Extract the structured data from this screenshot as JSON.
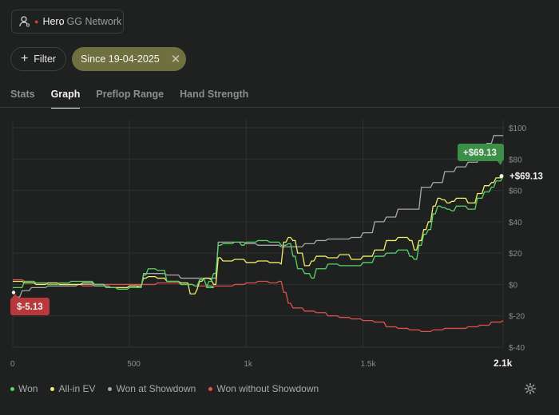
{
  "player": {
    "name": "Hero",
    "network": "GG Network",
    "user_icon": "user-settings-icon"
  },
  "filter": {
    "label": "Filter",
    "active_chip": "Since 19-04-2025"
  },
  "tabs": [
    {
      "label": "Stats",
      "active": false
    },
    {
      "label": "Graph",
      "active": true
    },
    {
      "label": "Preflop Range",
      "active": false
    },
    {
      "label": "Hand Strength",
      "active": false
    }
  ],
  "chart_data": {
    "type": "line",
    "x_ticks": [
      "0",
      "500",
      "1k",
      "1.5k",
      "2.1k"
    ],
    "x_tick_values": [
      0,
      500,
      1000,
      1500,
      2100
    ],
    "y_ticks": [
      "$100",
      "$80",
      "$60",
      "$40",
      "$20",
      "$0",
      "$-20",
      "$-40"
    ],
    "y_tick_values": [
      100,
      80,
      60,
      40,
      20,
      0,
      -20,
      -40
    ],
    "xlim": [
      0,
      2100
    ],
    "ylim": [
      -40,
      100
    ],
    "end_label": "+$69.13",
    "end_badge": "+$69.13",
    "start_badge": "$-5.13",
    "colors": {
      "won": "#57d46a",
      "ev": "#f0ee6a",
      "showdown": "#a8a8a8",
      "nonsd": "#e0514b",
      "badge_green": "#3c8f46",
      "badge_red": "#b9383b"
    },
    "series": [
      {
        "name": "Won",
        "points": [
          [
            0,
            -2
          ],
          [
            50,
            2
          ],
          [
            100,
            1
          ],
          [
            150,
            0
          ],
          [
            200,
            1
          ],
          [
            250,
            2
          ],
          [
            300,
            2
          ],
          [
            350,
            0
          ],
          [
            400,
            -2
          ],
          [
            450,
            -3
          ],
          [
            500,
            -2
          ],
          [
            540,
            -2
          ],
          [
            560,
            6
          ],
          [
            580,
            10
          ],
          [
            620,
            9
          ],
          [
            660,
            2
          ],
          [
            720,
            0
          ],
          [
            780,
            -1
          ],
          [
            800,
            3
          ],
          [
            820,
            3
          ],
          [
            830,
            -1
          ],
          [
            860,
            -2
          ],
          [
            840,
            2
          ],
          [
            860,
            7
          ],
          [
            880,
            25
          ],
          [
            900,
            26
          ],
          [
            950,
            27
          ],
          [
            980,
            25
          ],
          [
            1000,
            27
          ],
          [
            1050,
            28
          ],
          [
            1100,
            27
          ],
          [
            1150,
            25
          ],
          [
            1180,
            26
          ],
          [
            1200,
            18
          ],
          [
            1220,
            10
          ],
          [
            1250,
            7
          ],
          [
            1280,
            4
          ],
          [
            1300,
            10
          ],
          [
            1350,
            13
          ],
          [
            1400,
            12
          ],
          [
            1450,
            12
          ],
          [
            1500,
            14
          ],
          [
            1550,
            18
          ],
          [
            1600,
            20
          ],
          [
            1650,
            22
          ],
          [
            1700,
            18
          ],
          [
            1720,
            16
          ],
          [
            1740,
            25
          ],
          [
            1760,
            32
          ],
          [
            1780,
            35
          ],
          [
            1800,
            45
          ],
          [
            1820,
            50
          ],
          [
            1840,
            49
          ],
          [
            1860,
            48
          ],
          [
            1880,
            47
          ],
          [
            1900,
            50
          ],
          [
            1950,
            48
          ],
          [
            1990,
            55
          ],
          [
            2020,
            59
          ],
          [
            2050,
            62
          ],
          [
            2070,
            66
          ],
          [
            2100,
            69.13
          ]
        ]
      },
      {
        "name": "All-in EV",
        "points": [
          [
            0,
            2
          ],
          [
            50,
            1
          ],
          [
            100,
            0
          ],
          [
            150,
            1
          ],
          [
            200,
            0
          ],
          [
            250,
            0
          ],
          [
            300,
            1
          ],
          [
            350,
            0
          ],
          [
            400,
            -2
          ],
          [
            450,
            -2
          ],
          [
            500,
            -1
          ],
          [
            540,
            -1
          ],
          [
            560,
            4
          ],
          [
            580,
            5
          ],
          [
            620,
            4
          ],
          [
            660,
            2
          ],
          [
            720,
            1
          ],
          [
            760,
            -6
          ],
          [
            790,
            -3
          ],
          [
            800,
            2
          ],
          [
            820,
            4
          ],
          [
            850,
            3
          ],
          [
            860,
            0
          ],
          [
            880,
            17
          ],
          [
            900,
            15
          ],
          [
            950,
            16
          ],
          [
            1000,
            14
          ],
          [
            1050,
            15
          ],
          [
            1100,
            14
          ],
          [
            1150,
            13
          ],
          [
            1160,
            27
          ],
          [
            1180,
            30
          ],
          [
            1200,
            28
          ],
          [
            1220,
            20
          ],
          [
            1250,
            12
          ],
          [
            1280,
            15
          ],
          [
            1300,
            18
          ],
          [
            1350,
            17
          ],
          [
            1400,
            19
          ],
          [
            1450,
            16
          ],
          [
            1500,
            18
          ],
          [
            1550,
            22
          ],
          [
            1600,
            28
          ],
          [
            1650,
            30
          ],
          [
            1700,
            28
          ],
          [
            1720,
            22
          ],
          [
            1740,
            28
          ],
          [
            1760,
            35
          ],
          [
            1780,
            40
          ],
          [
            1800,
            50
          ],
          [
            1820,
            55
          ],
          [
            1840,
            54
          ],
          [
            1860,
            52
          ],
          [
            1880,
            53
          ],
          [
            1900,
            55
          ],
          [
            1950,
            52
          ],
          [
            1990,
            58
          ],
          [
            2020,
            63
          ],
          [
            2050,
            65
          ],
          [
            2070,
            68
          ],
          [
            2100,
            69
          ]
        ]
      },
      {
        "name": "Won at Showdown",
        "points": [
          [
            0,
            -8
          ],
          [
            40,
            -4
          ],
          [
            80,
            -2
          ],
          [
            150,
            -1
          ],
          [
            200,
            -1
          ],
          [
            280,
            0
          ],
          [
            350,
            -1
          ],
          [
            420,
            -2
          ],
          [
            500,
            -1
          ],
          [
            540,
            -2
          ],
          [
            560,
            7
          ],
          [
            620,
            7
          ],
          [
            660,
            6
          ],
          [
            720,
            4
          ],
          [
            780,
            4
          ],
          [
            820,
            4
          ],
          [
            880,
            27
          ],
          [
            950,
            27
          ],
          [
            1000,
            26
          ],
          [
            1050,
            25
          ],
          [
            1100,
            25
          ],
          [
            1150,
            24
          ],
          [
            1200,
            24
          ],
          [
            1250,
            26
          ],
          [
            1300,
            28
          ],
          [
            1350,
            29
          ],
          [
            1400,
            29
          ],
          [
            1450,
            30
          ],
          [
            1500,
            33
          ],
          [
            1550,
            40
          ],
          [
            1600,
            43
          ],
          [
            1650,
            48
          ],
          [
            1700,
            48
          ],
          [
            1750,
            62
          ],
          [
            1800,
            65
          ],
          [
            1850,
            72
          ],
          [
            1900,
            75
          ],
          [
            1950,
            78
          ],
          [
            2000,
            85
          ],
          [
            2030,
            90
          ],
          [
            2060,
            95
          ],
          [
            2100,
            95
          ]
        ]
      },
      {
        "name": "Won without Showdown",
        "points": [
          [
            0,
            3
          ],
          [
            50,
            2
          ],
          [
            100,
            1
          ],
          [
            150,
            1
          ],
          [
            200,
            0
          ],
          [
            250,
            0
          ],
          [
            300,
            -1
          ],
          [
            350,
            0
          ],
          [
            400,
            0
          ],
          [
            450,
            0
          ],
          [
            500,
            0
          ],
          [
            560,
            0
          ],
          [
            620,
            1
          ],
          [
            660,
            1
          ],
          [
            720,
            0
          ],
          [
            780,
            -1
          ],
          [
            820,
            -1
          ],
          [
            880,
            -1
          ],
          [
            950,
            0
          ],
          [
            1000,
            1
          ],
          [
            1050,
            2
          ],
          [
            1100,
            1
          ],
          [
            1140,
            2
          ],
          [
            1160,
            -5
          ],
          [
            1180,
            -12
          ],
          [
            1200,
            -15
          ],
          [
            1250,
            -17
          ],
          [
            1300,
            -18
          ],
          [
            1350,
            -20
          ],
          [
            1400,
            -21
          ],
          [
            1450,
            -22
          ],
          [
            1500,
            -23
          ],
          [
            1550,
            -24
          ],
          [
            1600,
            -27
          ],
          [
            1650,
            -28
          ],
          [
            1700,
            -29
          ],
          [
            1750,
            -30
          ],
          [
            1800,
            -29
          ],
          [
            1850,
            -28
          ],
          [
            1900,
            -28
          ],
          [
            1950,
            -27
          ],
          [
            2000,
            -26
          ],
          [
            2050,
            -24
          ],
          [
            2100,
            -23
          ]
        ]
      }
    ]
  },
  "legend": [
    "Won",
    "All-in EV",
    "Won at Showdown",
    "Won without Showdown"
  ],
  "settings_icon": "gear-icon"
}
